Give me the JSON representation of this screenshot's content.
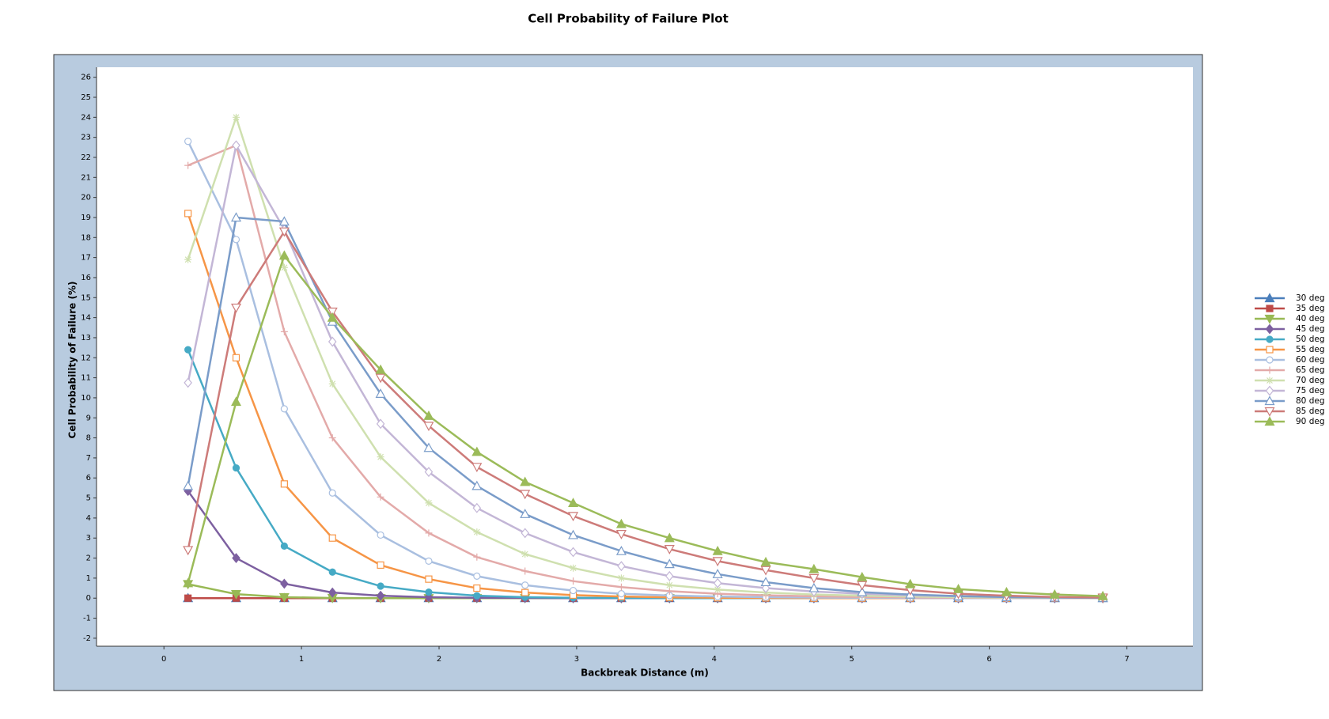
{
  "chart_data": {
    "type": "line",
    "title": "Cell Probability of Failure Plot",
    "x_label": "Backbreak Distance (m)",
    "y_label": "Cell Probability of Failure (%)",
    "x": [
      0.175,
      0.525,
      0.875,
      1.225,
      1.575,
      1.925,
      2.275,
      2.625,
      2.975,
      3.325,
      3.675,
      4.025,
      4.375,
      4.725,
      5.075,
      5.425,
      5.775,
      6.125,
      6.475,
      6.825
    ],
    "xlim": [
      -0.49,
      7.48
    ],
    "xticks": [
      0,
      1,
      2,
      3,
      4,
      5,
      6,
      7
    ],
    "ylim": [
      -2.4,
      26.5
    ],
    "yticks": [
      -2,
      -1,
      0,
      1,
      2,
      3,
      4,
      5,
      6,
      7,
      8,
      9,
      10,
      11,
      12,
      13,
      14,
      15,
      16,
      17,
      18,
      19,
      20,
      21,
      22,
      23,
      24,
      25,
      26
    ],
    "series": [
      {
        "name": "30 deg",
        "color": "#4a7ebb",
        "marker": "triangle",
        "values": [
          0,
          0,
          0,
          0,
          0,
          0,
          0,
          0,
          0,
          0,
          0,
          0,
          0,
          0,
          0,
          0,
          0,
          0,
          0,
          0
        ]
      },
      {
        "name": "35 deg",
        "color": "#be4b48",
        "marker": "square",
        "values": [
          0,
          0,
          0,
          0,
          0,
          0,
          0,
          0,
          0,
          0,
          0,
          0,
          0,
          0,
          0,
          0,
          0,
          0,
          0,
          0
        ]
      },
      {
        "name": "40 deg",
        "color": "#98b954",
        "marker": "triangle-down",
        "values": [
          0.7,
          0.2,
          0.05,
          0.01,
          0,
          0,
          0,
          0,
          0,
          0,
          0,
          0,
          0,
          0,
          0,
          0,
          0,
          0,
          0,
          0
        ]
      },
      {
        "name": "45 deg",
        "color": "#7d60a0",
        "marker": "diamond",
        "values": [
          5.35,
          2.0,
          0.72,
          0.28,
          0.12,
          0.05,
          0.02,
          0.01,
          0,
          0,
          0,
          0,
          0,
          0,
          0,
          0,
          0,
          0,
          0,
          0
        ]
      },
      {
        "name": "50 deg",
        "color": "#46aac5",
        "marker": "circle",
        "values": [
          12.4,
          6.5,
          2.6,
          1.3,
          0.6,
          0.3,
          0.12,
          0.05,
          0.02,
          0.01,
          0,
          0,
          0,
          0,
          0,
          0,
          0,
          0,
          0,
          0
        ]
      },
      {
        "name": "55 deg",
        "color": "#f69546",
        "marker": "square-open",
        "values": [
          19.2,
          12.0,
          5.7,
          3.0,
          1.65,
          0.95,
          0.5,
          0.28,
          0.15,
          0.08,
          0.04,
          0.02,
          0.01,
          0,
          0,
          0,
          0,
          0,
          0,
          0
        ]
      },
      {
        "name": "60 deg",
        "color": "#a9bfe0",
        "marker": "circle-open",
        "values": [
          22.8,
          17.9,
          9.45,
          5.25,
          3.15,
          1.85,
          1.1,
          0.65,
          0.38,
          0.22,
          0.13,
          0.08,
          0.05,
          0.03,
          0.02,
          0.01,
          0,
          0,
          0,
          0
        ]
      },
      {
        "name": "65 deg",
        "color": "#e3aaa9",
        "marker": "plus",
        "values": [
          21.6,
          22.6,
          13.3,
          8.0,
          5.05,
          3.25,
          2.05,
          1.35,
          0.85,
          0.55,
          0.35,
          0.22,
          0.14,
          0.09,
          0.06,
          0.04,
          0.02,
          0.01,
          0.01,
          0
        ]
      },
      {
        "name": "70 deg",
        "color": "#cfe0af",
        "marker": "star",
        "values": [
          16.9,
          24.0,
          16.5,
          10.7,
          7.05,
          4.75,
          3.3,
          2.2,
          1.5,
          1.0,
          0.65,
          0.43,
          0.28,
          0.18,
          0.12,
          0.08,
          0.05,
          0.03,
          0.02,
          0.01
        ]
      },
      {
        "name": "75 deg",
        "color": "#c3b6d6",
        "marker": "diamond-open",
        "values": [
          10.75,
          22.6,
          18.4,
          12.8,
          8.7,
          6.3,
          4.5,
          3.25,
          2.3,
          1.6,
          1.1,
          0.75,
          0.5,
          0.33,
          0.22,
          0.14,
          0.09,
          0.06,
          0.04,
          0.02
        ]
      },
      {
        "name": "80 deg",
        "color": "#7a9cc9",
        "marker": "triangle-open",
        "values": [
          5.6,
          19.0,
          18.8,
          13.8,
          10.2,
          7.5,
          5.6,
          4.2,
          3.15,
          2.35,
          1.7,
          1.2,
          0.8,
          0.5,
          0.3,
          0.18,
          0.1,
          0.05,
          0.03,
          0.01
        ]
      },
      {
        "name": "85 deg",
        "color": "#cd7b79",
        "marker": "triangle-down-open",
        "values": [
          2.4,
          14.5,
          18.3,
          14.3,
          11.0,
          8.6,
          6.55,
          5.2,
          4.1,
          3.2,
          2.45,
          1.85,
          1.4,
          1.0,
          0.65,
          0.4,
          0.22,
          0.12,
          0.06,
          0.03
        ]
      },
      {
        "name": "90 deg",
        "color": "#9bbb59",
        "marker": "triangle",
        "values": [
          0.75,
          9.8,
          17.1,
          14.0,
          11.4,
          9.1,
          7.3,
          5.8,
          4.75,
          3.7,
          3.0,
          2.35,
          1.8,
          1.45,
          1.05,
          0.7,
          0.45,
          0.3,
          0.18,
          0.1
        ]
      }
    ]
  }
}
